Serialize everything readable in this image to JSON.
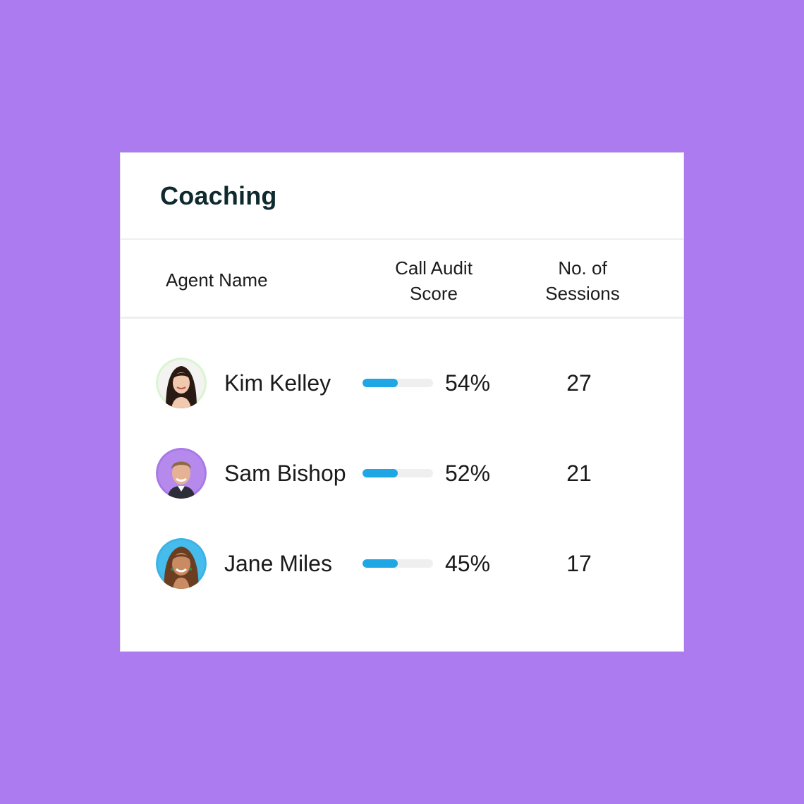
{
  "colors": {
    "background": "#AB7BEF",
    "card": "#FFFFFF",
    "title": "#0F2A2E",
    "bar_fill": "#1EA7E4",
    "bar_track": "#EFEFEF"
  },
  "card": {
    "title": "Coaching"
  },
  "table": {
    "headers": {
      "agent_name": "Agent Name",
      "score_line1": "Call Audit",
      "score_line2": "Score",
      "sessions_line1": "No. of",
      "sessions_line2": "Sessions"
    },
    "rows": [
      {
        "name": "Kim Kelley",
        "score": "54%",
        "bar_fraction": 0.5,
        "sessions": "27",
        "avatar_icon": "woman-portrait-icon",
        "avatar_ring": "#D9F5D0"
      },
      {
        "name": "Sam Bishop",
        "score": "52%",
        "bar_fraction": 0.5,
        "sessions": "21",
        "avatar_icon": "man-portrait-icon",
        "avatar_ring": "#A978E8"
      },
      {
        "name": "Jane Miles",
        "score": "45%",
        "bar_fraction": 0.5,
        "sessions": "17",
        "avatar_icon": "woman-portrait-icon",
        "avatar_ring": "#3BB3E6"
      }
    ]
  }
}
